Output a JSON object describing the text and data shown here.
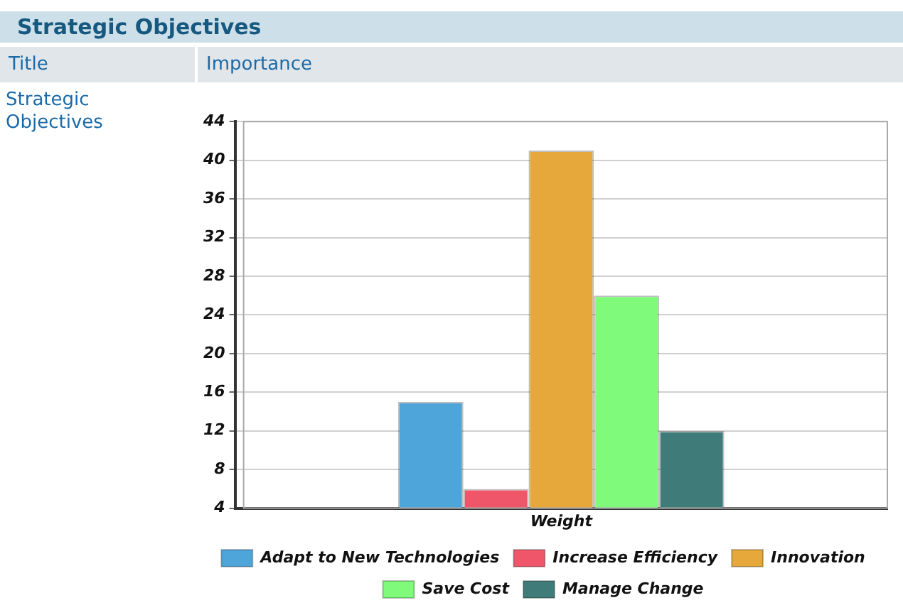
{
  "chart_data": {
    "type": "bar",
    "title": "Strategic Objectives",
    "annotations": [
      "Title",
      "Importance",
      "Strategic Objectives"
    ],
    "categories": [
      "Weight"
    ],
    "series": [
      {
        "name": "Adapt to New Technologies",
        "color": "#4ea5da",
        "values": [
          15
        ]
      },
      {
        "name": "Increase Efficiency",
        "color": "#f0566a",
        "values": [
          6
        ]
      },
      {
        "name": "Innovation",
        "color": "#e6a83a",
        "values": [
          41
        ]
      },
      {
        "name": "Save Cost",
        "color": "#80fa7a",
        "values": [
          26
        ]
      },
      {
        "name": "Manage Change",
        "color": "#3f7b78",
        "values": [
          12
        ]
      }
    ],
    "ylim": [
      4,
      44
    ],
    "yticks": [
      4,
      8,
      12,
      16,
      20,
      24,
      28,
      32,
      36,
      40,
      44
    ],
    "grid": "y",
    "legend": "bottom"
  }
}
